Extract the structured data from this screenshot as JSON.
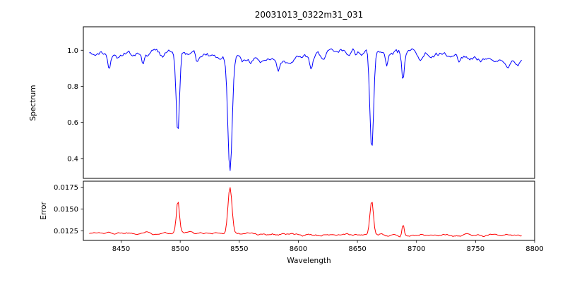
{
  "figure": {
    "title": "20031013_0322m31_031",
    "xlabel": "Wavelength",
    "background": "#ffffff",
    "frame_color": "#000000",
    "text_color": "#000000"
  },
  "chart_data": [
    {
      "type": "line",
      "name": "spectrum",
      "title": "20031013_0322m31_031",
      "ylabel": "Spectrum",
      "line_color": "#0000ff",
      "x_range": [
        8423,
        8789
      ],
      "xlim": [
        8418,
        8800
      ],
      "ylim": [
        0.29,
        1.13
      ],
      "yticks": [
        0.4,
        0.6,
        0.8,
        1.0
      ],
      "ytick_labels": [
        "0.4",
        "0.6",
        "0.8",
        "1.0"
      ],
      "continuum_level": 0.97,
      "noise_amplitude": 0.022,
      "absorption_lines": [
        {
          "center": 8498.0,
          "depth": 0.45,
          "sigma": 1.4
        },
        {
          "center": 8542.1,
          "depth": 0.63,
          "sigma": 1.8
        },
        {
          "center": 8662.1,
          "depth": 0.56,
          "sigma": 1.6
        },
        {
          "center": 8688.6,
          "depth": 0.15,
          "sigma": 1.0
        }
      ],
      "minor_lines": [
        {
          "center": 8440.0,
          "depth": 0.08,
          "sigma": 1.2
        },
        {
          "center": 8468.5,
          "depth": 0.07,
          "sigma": 1.2
        },
        {
          "center": 8514.1,
          "depth": 0.06,
          "sigma": 1.1
        },
        {
          "center": 8583.0,
          "depth": 0.05,
          "sigma": 1.1
        },
        {
          "center": 8611.0,
          "depth": 0.06,
          "sigma": 1.2
        },
        {
          "center": 8648.5,
          "depth": 0.05,
          "sigma": 1.0
        },
        {
          "center": 8674.8,
          "depth": 0.09,
          "sigma": 1.1
        },
        {
          "center": 8736.0,
          "depth": 0.04,
          "sigma": 1.0
        }
      ]
    },
    {
      "type": "line",
      "name": "error",
      "ylabel": "Error",
      "line_color": "#ff0000",
      "x_range": [
        8423,
        8789
      ],
      "xlim": [
        8418,
        8800
      ],
      "ylim": [
        0.0114,
        0.0182
      ],
      "yticks": [
        0.0125,
        0.015,
        0.0175
      ],
      "ytick_labels": [
        "0.0125",
        "0.0150",
        "0.0175"
      ],
      "xticks": [
        8450,
        8500,
        8550,
        8600,
        8650,
        8700,
        8750,
        8800
      ],
      "xtick_labels": [
        "8450",
        "8500",
        "8550",
        "8600",
        "8650",
        "8700",
        "8750",
        "8800"
      ],
      "baseline": 0.01225,
      "noise_amplitude": 0.00016,
      "peaks": [
        {
          "center": 8498.0,
          "height": 0.0036,
          "sigma": 1.3
        },
        {
          "center": 8542.1,
          "height": 0.0053,
          "sigma": 1.7
        },
        {
          "center": 8662.1,
          "height": 0.0039,
          "sigma": 1.5
        },
        {
          "center": 8688.6,
          "height": 0.0014,
          "sigma": 0.9
        }
      ]
    }
  ]
}
